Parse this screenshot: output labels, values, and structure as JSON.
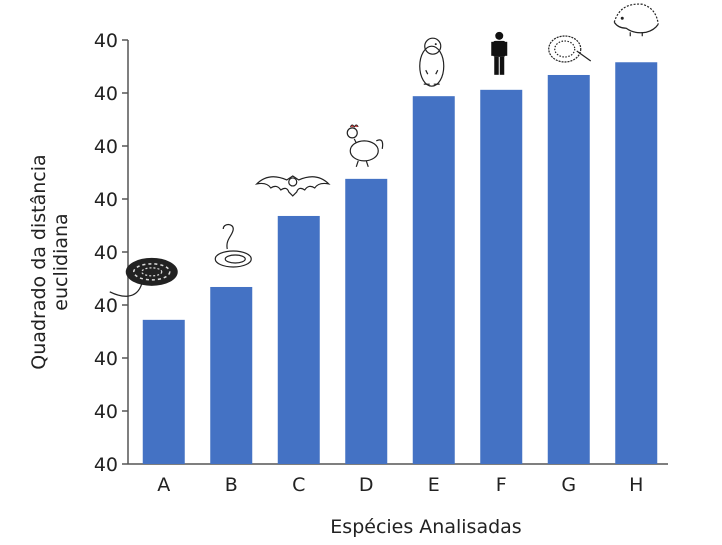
{
  "chart_data": {
    "type": "bar",
    "title": "",
    "xlabel": "Espécies Analisadas",
    "ylabel_lines": [
      "Quadrado da distância",
      "euclidiana"
    ],
    "categories": [
      "A",
      "B",
      "C",
      "D",
      "E",
      "F",
      "G",
      "H"
    ],
    "category_icons": [
      "coiled-snake-icon",
      "cobra-icon",
      "bat-icon",
      "chicken-icon",
      "marmot-icon",
      "human-icon",
      "echidna-icon",
      "hedgehog-icon"
    ],
    "values": [
      2.72,
      3.34,
      4.68,
      5.38,
      6.94,
      7.06,
      7.34,
      7.58
    ],
    "value_units_note": "tick steps above baseline (all tick labels read 40)",
    "yticks": [
      0,
      1,
      2,
      3,
      4,
      5,
      6,
      7,
      8
    ],
    "ytick_labels": [
      "40",
      "40",
      "40",
      "40",
      "40",
      "40",
      "40",
      "40",
      "40"
    ],
    "ylim": [
      0,
      8
    ],
    "grid": false,
    "bar_color": "#4472c4"
  }
}
